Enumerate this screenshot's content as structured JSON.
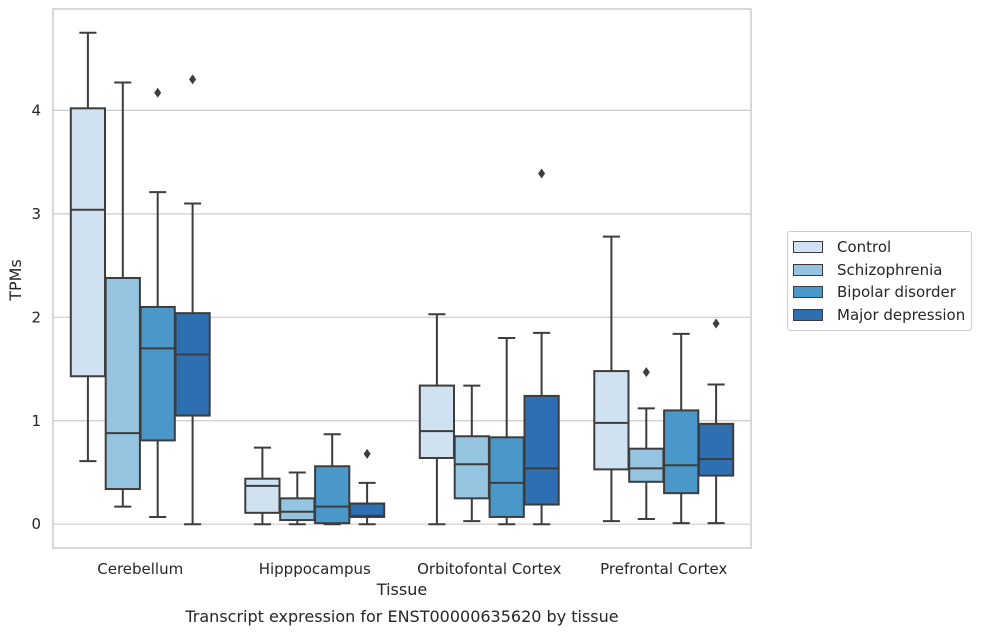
{
  "caption": "Transcript expression for ENST00000635620 by tissue",
  "chart_data": {
    "type": "box",
    "xlabel": "Tissue",
    "ylabel": "TPMs",
    "ylim": [
      -0.23,
      4.98
    ],
    "yticks": [
      0,
      1,
      2,
      3,
      4
    ],
    "grid": true,
    "legend_position": "right",
    "categories": [
      "Cerebellum",
      "Hipppocampus",
      "Orbitofontal Cortex",
      "Prefrontal Cortex"
    ],
    "series": [
      {
        "name": "Control",
        "color": "#d0e1f2",
        "boxes": [
          {
            "whisker_low": 0.61,
            "q1": 1.43,
            "median": 3.04,
            "q3": 4.02,
            "whisker_high": 4.75,
            "outliers": []
          },
          {
            "whisker_low": 0.0,
            "q1": 0.11,
            "median": 0.37,
            "q3": 0.44,
            "whisker_high": 0.74,
            "outliers": []
          },
          {
            "whisker_low": 0.0,
            "q1": 0.64,
            "median": 0.9,
            "q3": 1.34,
            "whisker_high": 2.03,
            "outliers": []
          },
          {
            "whisker_low": 0.03,
            "q1": 0.53,
            "median": 0.98,
            "q3": 1.48,
            "whisker_high": 2.78,
            "outliers": []
          }
        ]
      },
      {
        "name": "Schizophrenia",
        "color": "#94c4df",
        "boxes": [
          {
            "whisker_low": 0.17,
            "q1": 0.34,
            "median": 0.88,
            "q3": 2.38,
            "whisker_high": 4.27,
            "outliers": []
          },
          {
            "whisker_low": 0.0,
            "q1": 0.04,
            "median": 0.12,
            "q3": 0.25,
            "whisker_high": 0.5,
            "outliers": []
          },
          {
            "whisker_low": 0.03,
            "q1": 0.25,
            "median": 0.58,
            "q3": 0.85,
            "whisker_high": 1.34,
            "outliers": []
          },
          {
            "whisker_low": 0.05,
            "q1": 0.41,
            "median": 0.54,
            "q3": 0.73,
            "whisker_high": 1.12,
            "outliers": [
              1.47
            ]
          }
        ]
      },
      {
        "name": "Bipolar disorder",
        "color": "#4a98c9",
        "boxes": [
          {
            "whisker_low": 0.07,
            "q1": 0.81,
            "median": 1.7,
            "q3": 2.1,
            "whisker_high": 3.21,
            "outliers": [
              4.17
            ]
          },
          {
            "whisker_low": 0.0,
            "q1": 0.01,
            "median": 0.17,
            "q3": 0.56,
            "whisker_high": 0.87,
            "outliers": []
          },
          {
            "whisker_low": 0.0,
            "q1": 0.07,
            "median": 0.4,
            "q3": 0.84,
            "whisker_high": 1.8,
            "outliers": []
          },
          {
            "whisker_low": 0.01,
            "q1": 0.3,
            "median": 0.57,
            "q3": 1.1,
            "whisker_high": 1.84,
            "outliers": []
          }
        ]
      },
      {
        "name": "Major depression",
        "color": "#2d6fb0",
        "boxes": [
          {
            "whisker_low": 0.0,
            "q1": 1.05,
            "median": 1.64,
            "q3": 2.04,
            "whisker_high": 3.1,
            "outliers": [
              4.3
            ]
          },
          {
            "whisker_low": 0.0,
            "q1": 0.07,
            "median": 0.08,
            "q3": 0.2,
            "whisker_high": 0.4,
            "outliers": [
              0.68
            ]
          },
          {
            "whisker_low": 0.0,
            "q1": 0.19,
            "median": 0.54,
            "q3": 1.24,
            "whisker_high": 1.85,
            "outliers": [
              3.39
            ]
          },
          {
            "whisker_low": 0.01,
            "q1": 0.47,
            "median": 0.63,
            "q3": 0.97,
            "whisker_high": 1.35,
            "outliers": [
              1.94
            ]
          }
        ]
      }
    ]
  }
}
